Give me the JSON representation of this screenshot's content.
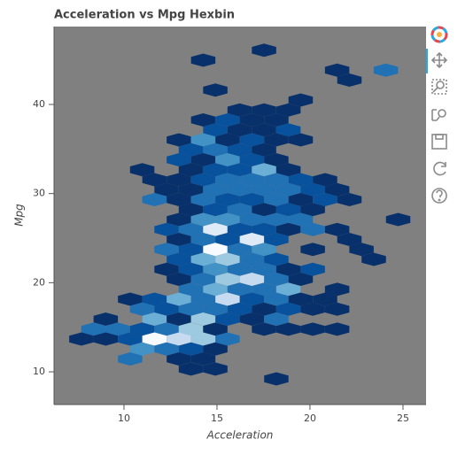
{
  "chart_data": {
    "type": "hexbin",
    "title": "Acceleration vs Mpg Hexbin",
    "x_label": "Acceleration",
    "y_label": "Mpg",
    "xlim": [
      6.24,
      26.24
    ],
    "ylim": [
      6.33,
      48.74
    ],
    "xticks": [
      10,
      15,
      20,
      25
    ],
    "yticks": [
      10,
      20,
      30,
      40
    ],
    "background": "#808080",
    "palette": [
      "#08306b",
      "#08519c",
      "#2171b5",
      "#4292c6",
      "#6baed6",
      "#9ecae1",
      "#c6dbef",
      "#deebf7",
      "#f7fbff"
    ],
    "hexes": [
      {
        "x": 17.53,
        "y": 46.08,
        "count": 1
      },
      {
        "x": 14.26,
        "y": 44.97,
        "count": 1
      },
      {
        "x": 21.46,
        "y": 43.85,
        "count": 1
      },
      {
        "x": 24.08,
        "y": 43.85,
        "count": 3
      },
      {
        "x": 22.12,
        "y": 42.73,
        "count": 1
      },
      {
        "x": 14.91,
        "y": 41.61,
        "count": 1
      },
      {
        "x": 19.5,
        "y": 40.5,
        "count": 1
      },
      {
        "x": 16.22,
        "y": 39.38,
        "count": 1
      },
      {
        "x": 17.53,
        "y": 39.38,
        "count": 1
      },
      {
        "x": 18.84,
        "y": 39.38,
        "count": 1
      },
      {
        "x": 14.26,
        "y": 38.26,
        "count": 1
      },
      {
        "x": 15.57,
        "y": 38.26,
        "count": 2
      },
      {
        "x": 16.88,
        "y": 38.26,
        "count": 1
      },
      {
        "x": 18.19,
        "y": 38.26,
        "count": 1
      },
      {
        "x": 14.91,
        "y": 37.14,
        "count": 2
      },
      {
        "x": 16.22,
        "y": 37.14,
        "count": 1
      },
      {
        "x": 17.53,
        "y": 37.14,
        "count": 1
      },
      {
        "x": 18.84,
        "y": 37.14,
        "count": 2
      },
      {
        "x": 12.95,
        "y": 36.03,
        "count": 1
      },
      {
        "x": 14.26,
        "y": 36.03,
        "count": 4
      },
      {
        "x": 15.57,
        "y": 36.03,
        "count": 1
      },
      {
        "x": 16.88,
        "y": 36.03,
        "count": 2
      },
      {
        "x": 18.19,
        "y": 36.03,
        "count": 1
      },
      {
        "x": 19.5,
        "y": 36.03,
        "count": 1
      },
      {
        "x": 13.6,
        "y": 34.91,
        "count": 2
      },
      {
        "x": 14.91,
        "y": 34.91,
        "count": 3
      },
      {
        "x": 16.22,
        "y": 34.91,
        "count": 2
      },
      {
        "x": 17.53,
        "y": 34.91,
        "count": 1
      },
      {
        "x": 12.95,
        "y": 33.79,
        "count": 2
      },
      {
        "x": 14.26,
        "y": 33.79,
        "count": 1
      },
      {
        "x": 15.57,
        "y": 33.79,
        "count": 4
      },
      {
        "x": 16.88,
        "y": 33.79,
        "count": 2
      },
      {
        "x": 18.19,
        "y": 33.79,
        "count": 1
      },
      {
        "x": 10.98,
        "y": 32.67,
        "count": 1
      },
      {
        "x": 13.6,
        "y": 32.67,
        "count": 1
      },
      {
        "x": 14.91,
        "y": 32.67,
        "count": 2
      },
      {
        "x": 16.22,
        "y": 32.67,
        "count": 2
      },
      {
        "x": 17.53,
        "y": 32.67,
        "count": 5
      },
      {
        "x": 18.84,
        "y": 32.67,
        "count": 1
      },
      {
        "x": 11.64,
        "y": 31.56,
        "count": 1
      },
      {
        "x": 12.95,
        "y": 31.56,
        "count": 1
      },
      {
        "x": 14.26,
        "y": 31.56,
        "count": 2
      },
      {
        "x": 15.57,
        "y": 31.56,
        "count": 3
      },
      {
        "x": 16.88,
        "y": 31.56,
        "count": 3
      },
      {
        "x": 18.19,
        "y": 31.56,
        "count": 3
      },
      {
        "x": 19.5,
        "y": 31.56,
        "count": 2
      },
      {
        "x": 20.81,
        "y": 31.56,
        "count": 1
      },
      {
        "x": 12.29,
        "y": 30.44,
        "count": 1
      },
      {
        "x": 13.6,
        "y": 30.44,
        "count": 1
      },
      {
        "x": 14.91,
        "y": 30.44,
        "count": 3
      },
      {
        "x": 16.22,
        "y": 30.44,
        "count": 3
      },
      {
        "x": 17.53,
        "y": 30.44,
        "count": 3
      },
      {
        "x": 18.84,
        "y": 30.44,
        "count": 3
      },
      {
        "x": 20.15,
        "y": 30.44,
        "count": 2
      },
      {
        "x": 21.46,
        "y": 30.44,
        "count": 1
      },
      {
        "x": 11.64,
        "y": 29.32,
        "count": 3
      },
      {
        "x": 12.95,
        "y": 29.32,
        "count": 1
      },
      {
        "x": 14.26,
        "y": 29.32,
        "count": 3
      },
      {
        "x": 15.57,
        "y": 29.32,
        "count": 2
      },
      {
        "x": 16.88,
        "y": 29.32,
        "count": 2
      },
      {
        "x": 18.19,
        "y": 29.32,
        "count": 3
      },
      {
        "x": 19.5,
        "y": 29.32,
        "count": 1
      },
      {
        "x": 20.81,
        "y": 29.32,
        "count": 2
      },
      {
        "x": 22.12,
        "y": 29.32,
        "count": 1
      },
      {
        "x": 13.6,
        "y": 28.2,
        "count": 1
      },
      {
        "x": 14.91,
        "y": 28.2,
        "count": 2
      },
      {
        "x": 16.22,
        "y": 28.2,
        "count": 3
      },
      {
        "x": 17.53,
        "y": 28.2,
        "count": 1
      },
      {
        "x": 18.84,
        "y": 28.2,
        "count": 2
      },
      {
        "x": 20.15,
        "y": 28.2,
        "count": 1
      },
      {
        "x": 12.95,
        "y": 27.09,
        "count": 1
      },
      {
        "x": 14.26,
        "y": 27.09,
        "count": 4
      },
      {
        "x": 15.57,
        "y": 27.09,
        "count": 4
      },
      {
        "x": 16.88,
        "y": 27.09,
        "count": 3
      },
      {
        "x": 18.19,
        "y": 27.09,
        "count": 3
      },
      {
        "x": 19.5,
        "y": 27.09,
        "count": 3
      },
      {
        "x": 24.74,
        "y": 27.09,
        "count": 1
      },
      {
        "x": 12.29,
        "y": 25.97,
        "count": 2
      },
      {
        "x": 13.6,
        "y": 25.97,
        "count": 3
      },
      {
        "x": 14.91,
        "y": 25.97,
        "count": 8
      },
      {
        "x": 16.22,
        "y": 25.97,
        "count": 2
      },
      {
        "x": 17.53,
        "y": 25.97,
        "count": 2
      },
      {
        "x": 18.84,
        "y": 25.97,
        "count": 1
      },
      {
        "x": 20.15,
        "y": 25.97,
        "count": 3
      },
      {
        "x": 21.46,
        "y": 25.97,
        "count": 1
      },
      {
        "x": 12.95,
        "y": 24.85,
        "count": 1
      },
      {
        "x": 14.26,
        "y": 24.85,
        "count": 3
      },
      {
        "x": 15.57,
        "y": 24.85,
        "count": 2
      },
      {
        "x": 16.88,
        "y": 24.85,
        "count": 8
      },
      {
        "x": 18.19,
        "y": 24.85,
        "count": 2
      },
      {
        "x": 22.12,
        "y": 24.85,
        "count": 1
      },
      {
        "x": 12.29,
        "y": 23.73,
        "count": 3
      },
      {
        "x": 13.6,
        "y": 23.73,
        "count": 2
      },
      {
        "x": 14.91,
        "y": 23.73,
        "count": 9
      },
      {
        "x": 16.22,
        "y": 23.73,
        "count": 3
      },
      {
        "x": 17.53,
        "y": 23.73,
        "count": 4
      },
      {
        "x": 20.15,
        "y": 23.73,
        "count": 1
      },
      {
        "x": 22.77,
        "y": 23.73,
        "count": 1
      },
      {
        "x": 12.95,
        "y": 22.62,
        "count": 2
      },
      {
        "x": 14.26,
        "y": 22.62,
        "count": 5
      },
      {
        "x": 15.57,
        "y": 22.62,
        "count": 6
      },
      {
        "x": 16.88,
        "y": 22.62,
        "count": 3
      },
      {
        "x": 18.19,
        "y": 22.62,
        "count": 2
      },
      {
        "x": 23.43,
        "y": 22.62,
        "count": 1
      },
      {
        "x": 12.29,
        "y": 21.5,
        "count": 1
      },
      {
        "x": 13.6,
        "y": 21.5,
        "count": 2
      },
      {
        "x": 14.91,
        "y": 21.5,
        "count": 4
      },
      {
        "x": 16.22,
        "y": 21.5,
        "count": 3
      },
      {
        "x": 17.53,
        "y": 21.5,
        "count": 3
      },
      {
        "x": 18.84,
        "y": 21.5,
        "count": 1
      },
      {
        "x": 20.15,
        "y": 21.5,
        "count": 2
      },
      {
        "x": 12.95,
        "y": 20.38,
        "count": 1
      },
      {
        "x": 14.26,
        "y": 20.38,
        "count": 3
      },
      {
        "x": 15.57,
        "y": 20.38,
        "count": 6
      },
      {
        "x": 16.88,
        "y": 20.38,
        "count": 7
      },
      {
        "x": 18.19,
        "y": 20.38,
        "count": 3
      },
      {
        "x": 19.5,
        "y": 20.38,
        "count": 1
      },
      {
        "x": 13.6,
        "y": 19.26,
        "count": 3
      },
      {
        "x": 14.91,
        "y": 19.26,
        "count": 5
      },
      {
        "x": 16.22,
        "y": 19.26,
        "count": 3
      },
      {
        "x": 17.53,
        "y": 19.26,
        "count": 3
      },
      {
        "x": 18.84,
        "y": 19.26,
        "count": 5
      },
      {
        "x": 21.46,
        "y": 19.26,
        "count": 1
      },
      {
        "x": 10.33,
        "y": 18.15,
        "count": 1
      },
      {
        "x": 11.64,
        "y": 18.15,
        "count": 2
      },
      {
        "x": 12.95,
        "y": 18.15,
        "count": 5
      },
      {
        "x": 14.26,
        "y": 18.15,
        "count": 3
      },
      {
        "x": 15.57,
        "y": 18.15,
        "count": 7
      },
      {
        "x": 16.88,
        "y": 18.15,
        "count": 2
      },
      {
        "x": 18.19,
        "y": 18.15,
        "count": 3
      },
      {
        "x": 19.5,
        "y": 18.15,
        "count": 1
      },
      {
        "x": 20.81,
        "y": 18.15,
        "count": 1
      },
      {
        "x": 10.98,
        "y": 17.03,
        "count": 3
      },
      {
        "x": 12.29,
        "y": 17.03,
        "count": 2
      },
      {
        "x": 13.6,
        "y": 17.03,
        "count": 3
      },
      {
        "x": 14.91,
        "y": 17.03,
        "count": 3
      },
      {
        "x": 16.22,
        "y": 17.03,
        "count": 2
      },
      {
        "x": 17.53,
        "y": 17.03,
        "count": 1
      },
      {
        "x": 18.84,
        "y": 17.03,
        "count": 2
      },
      {
        "x": 20.15,
        "y": 17.03,
        "count": 1
      },
      {
        "x": 21.46,
        "y": 17.03,
        "count": 1
      },
      {
        "x": 9.02,
        "y": 15.91,
        "count": 1
      },
      {
        "x": 11.64,
        "y": 15.91,
        "count": 5
      },
      {
        "x": 12.95,
        "y": 15.91,
        "count": 1
      },
      {
        "x": 14.26,
        "y": 15.91,
        "count": 6
      },
      {
        "x": 15.57,
        "y": 15.91,
        "count": 2
      },
      {
        "x": 16.88,
        "y": 15.91,
        "count": 1
      },
      {
        "x": 18.19,
        "y": 15.91,
        "count": 3
      },
      {
        "x": 8.36,
        "y": 14.79,
        "count": 3
      },
      {
        "x": 9.67,
        "y": 14.79,
        "count": 3
      },
      {
        "x": 10.98,
        "y": 14.79,
        "count": 2
      },
      {
        "x": 12.29,
        "y": 14.79,
        "count": 3
      },
      {
        "x": 13.6,
        "y": 14.79,
        "count": 6
      },
      {
        "x": 14.91,
        "y": 14.79,
        "count": 1
      },
      {
        "x": 17.53,
        "y": 14.79,
        "count": 1
      },
      {
        "x": 18.84,
        "y": 14.79,
        "count": 1
      },
      {
        "x": 20.15,
        "y": 14.79,
        "count": 1
      },
      {
        "x": 21.46,
        "y": 14.79,
        "count": 1
      },
      {
        "x": 7.71,
        "y": 13.68,
        "count": 1
      },
      {
        "x": 9.02,
        "y": 13.68,
        "count": 1
      },
      {
        "x": 10.33,
        "y": 13.68,
        "count": 2
      },
      {
        "x": 11.64,
        "y": 13.68,
        "count": 9
      },
      {
        "x": 12.95,
        "y": 13.68,
        "count": 7
      },
      {
        "x": 14.26,
        "y": 13.68,
        "count": 6
      },
      {
        "x": 15.57,
        "y": 13.68,
        "count": 3
      },
      {
        "x": 10.98,
        "y": 12.56,
        "count": 4
      },
      {
        "x": 12.29,
        "y": 12.56,
        "count": 3
      },
      {
        "x": 13.6,
        "y": 12.56,
        "count": 2
      },
      {
        "x": 14.91,
        "y": 12.56,
        "count": 1
      },
      {
        "x": 10.33,
        "y": 11.44,
        "count": 3
      },
      {
        "x": 12.95,
        "y": 11.44,
        "count": 1
      },
      {
        "x": 14.26,
        "y": 11.44,
        "count": 1
      },
      {
        "x": 13.6,
        "y": 10.32,
        "count": 1
      },
      {
        "x": 14.91,
        "y": 10.32,
        "count": 1
      },
      {
        "x": 18.19,
        "y": 9.21,
        "count": 1
      }
    ]
  }
}
